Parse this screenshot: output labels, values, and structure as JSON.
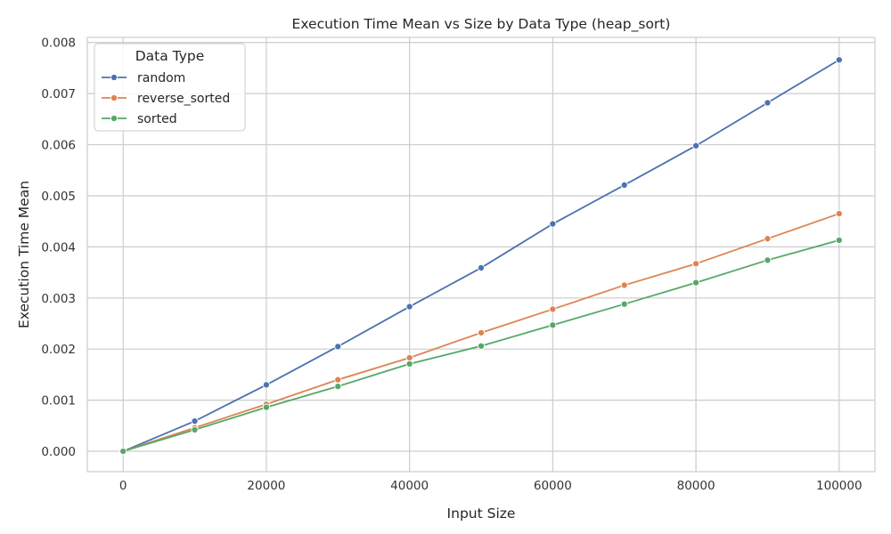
{
  "chart_data": {
    "type": "line",
    "title": "Execution Time Mean vs Size by Data Type (heap_sort)",
    "xlabel": "Input Size",
    "ylabel": "Execution Time Mean",
    "x": [
      0,
      10000,
      20000,
      30000,
      40000,
      50000,
      60000,
      70000,
      80000,
      90000,
      100000
    ],
    "xlim": [
      -5000,
      105000
    ],
    "ylim": [
      -0.0004,
      0.0081
    ],
    "xticks": [
      0,
      20000,
      40000,
      60000,
      80000,
      100000
    ],
    "xtick_labels": [
      "0",
      "20000",
      "40000",
      "60000",
      "80000",
      "100000"
    ],
    "yticks": [
      0,
      0.001,
      0.002,
      0.003,
      0.004,
      0.005,
      0.006,
      0.007,
      0.008
    ],
    "ytick_labels": [
      "0.000",
      "0.001",
      "0.002",
      "0.003",
      "0.004",
      "0.005",
      "0.006",
      "0.007",
      "0.008"
    ],
    "grid": true,
    "legend": {
      "title": "Data Type",
      "placement": "top-left"
    },
    "series": [
      {
        "name": "random",
        "color": "#4c72b0",
        "values": [
          0.0,
          0.00059,
          0.0013,
          0.00205,
          0.00283,
          0.00359,
          0.00445,
          0.00521,
          0.00598,
          0.00682,
          0.00766
        ]
      },
      {
        "name": "reverse_sorted",
        "color": "#dd8452",
        "values": [
          0.0,
          0.00046,
          0.00092,
          0.0014,
          0.00183,
          0.00232,
          0.00278,
          0.00325,
          0.00367,
          0.00416,
          0.00465
        ]
      },
      {
        "name": "sorted",
        "color": "#55a868",
        "values": [
          0.0,
          0.00042,
          0.00086,
          0.00127,
          0.00171,
          0.00206,
          0.00247,
          0.00288,
          0.0033,
          0.00374,
          0.00413
        ]
      }
    ]
  }
}
